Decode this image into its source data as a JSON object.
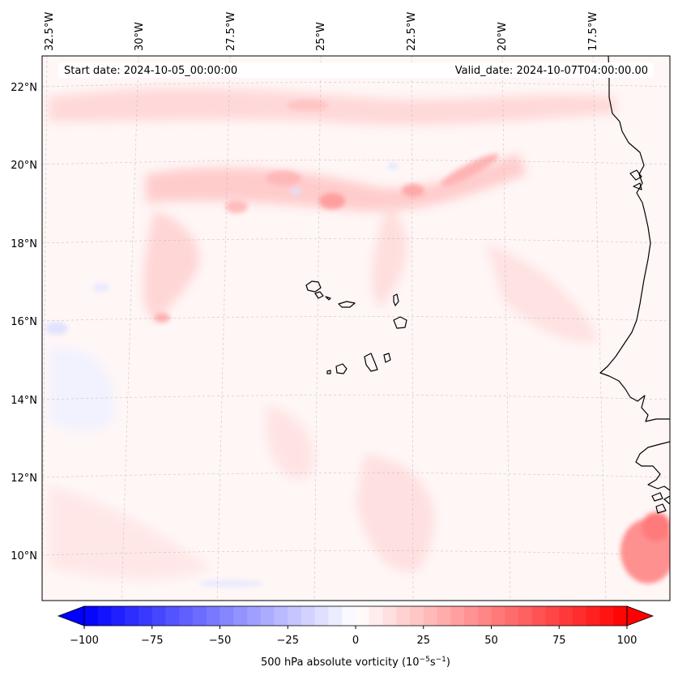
{
  "map": {
    "start_label": "Start date: 2024-10-05_00:00:00",
    "valid_label": "Valid_date: 2024-10-07T04:00:00.00",
    "lon_labels": [
      "32.5°W",
      "30°W",
      "27.5°W",
      "25°W",
      "22.5°W",
      "20°W",
      "17.5°W"
    ],
    "lat_labels": [
      "22°N",
      "20°N",
      "18°N",
      "16°N",
      "14°N",
      "12°N",
      "10°N"
    ],
    "colors": {
      "neg": "#0000ff",
      "pos": "#ff0000",
      "coast": "#000000",
      "grid": "#b0b0b0"
    }
  },
  "colorbar": {
    "label_main": "500 hPa absolute vorticity (10",
    "label_exp1": "−5",
    "label_mid": "s",
    "label_exp2": "−1",
    "label_end": ")",
    "ticks": [
      "−100",
      "−75",
      "−50",
      "−25",
      "0",
      "25",
      "50",
      "75",
      "100"
    ]
  }
}
